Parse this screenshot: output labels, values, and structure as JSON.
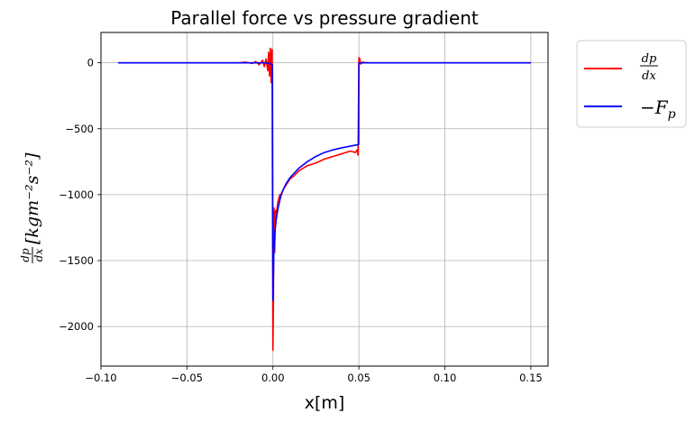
{
  "chart_data": {
    "type": "line",
    "title": "Parallel force vs pressure gradient",
    "xlabel": "x[m]",
    "ylabel": {
      "fraction_num": "dp",
      "fraction_den": "dx",
      "units": "[kgm⁻²s⁻²]"
    },
    "xlim": [
      -0.1,
      0.16
    ],
    "ylim": [
      -2300,
      230
    ],
    "xticks": [
      -0.1,
      -0.05,
      0.0,
      0.05,
      0.1,
      0.15
    ],
    "xtick_labels": [
      "−0.10",
      "−0.05",
      "0.00",
      "0.05",
      "0.10",
      "0.15"
    ],
    "yticks": [
      0,
      -500,
      -1000,
      -1500,
      -2000
    ],
    "ytick_labels": [
      "0",
      "−500",
      "−1000",
      "−1500",
      "−2000"
    ],
    "grid": true,
    "legend_position": "outside upper right",
    "series": [
      {
        "name": "dp/dx",
        "legend_label": {
          "num": "dp",
          "den": "dx"
        },
        "color": "#ff0000",
        "x": [
          -0.09,
          -0.02,
          -0.016,
          -0.012,
          -0.01,
          -0.008,
          -0.006,
          -0.005,
          -0.004,
          -0.003,
          -0.0025,
          -0.002,
          -0.0015,
          -0.001,
          -0.0005,
          0.0,
          0.0003,
          0.0006,
          0.001,
          0.0015,
          0.002,
          0.003,
          0.004,
          0.005,
          0.006,
          0.008,
          0.01,
          0.012,
          0.015,
          0.02,
          0.025,
          0.03,
          0.035,
          0.04,
          0.045,
          0.048,
          0.049,
          0.0495,
          0.05,
          0.0502,
          0.0505,
          0.051,
          0.052,
          0.055,
          0.06,
          0.07,
          0.09,
          0.12,
          0.15
        ],
        "y": [
          0,
          0,
          5,
          -5,
          10,
          -15,
          20,
          -30,
          30,
          -60,
          80,
          -100,
          110,
          -150,
          100,
          -2180,
          -1800,
          -1100,
          -1440,
          -1120,
          -1140,
          -1050,
          -1000,
          -1000,
          -960,
          -920,
          -880,
          -860,
          -820,
          -780,
          -760,
          -730,
          -710,
          -690,
          -670,
          -680,
          -660,
          -700,
          40,
          10,
          30,
          -10,
          5,
          0,
          0,
          0,
          0,
          0,
          0
        ]
      },
      {
        "name": "−F_p",
        "legend_label": {
          "main": "−F",
          "sub": "p"
        },
        "color": "#0000ff",
        "x": [
          -0.09,
          -0.02,
          -0.005,
          -0.002,
          -0.001,
          -0.0003,
          0.0,
          0.0005,
          0.001,
          0.002,
          0.003,
          0.005,
          0.0075,
          0.01,
          0.015,
          0.02,
          0.025,
          0.03,
          0.035,
          0.04,
          0.045,
          0.0499,
          0.05,
          0.0505,
          0.052,
          0.06,
          0.1,
          0.15
        ],
        "y": [
          0,
          0,
          0,
          -5,
          -10,
          -15,
          -1800,
          -1450,
          -1300,
          -1180,
          -1100,
          -990,
          -920,
          -870,
          -800,
          -750,
          -710,
          -680,
          -660,
          -645,
          -632,
          -620,
          0,
          0,
          0,
          0,
          0,
          0
        ]
      }
    ]
  }
}
